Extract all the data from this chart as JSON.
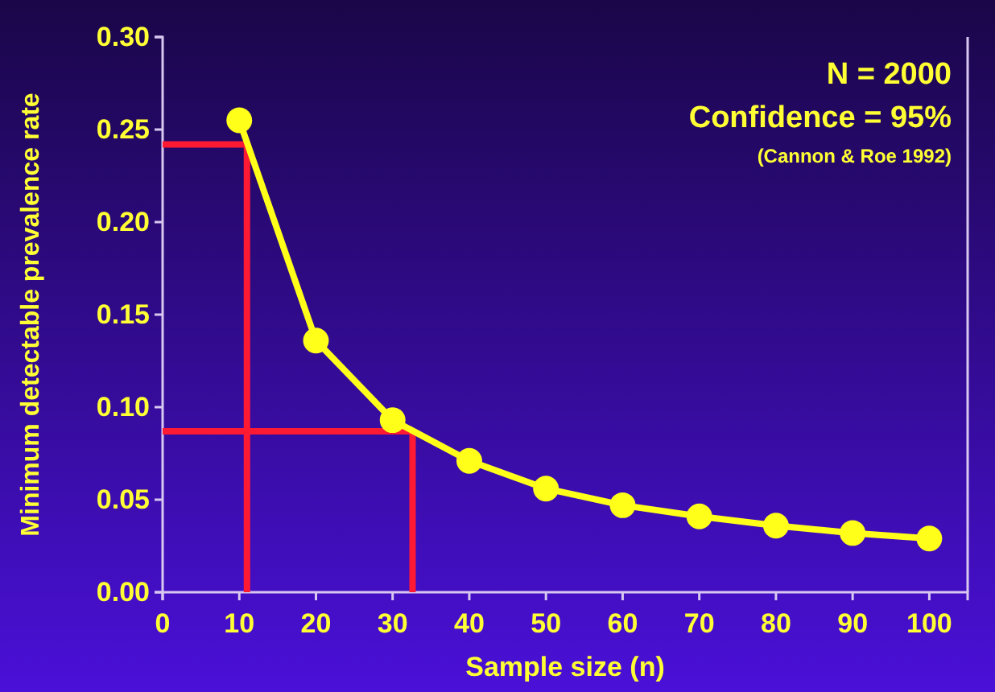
{
  "chart_data": {
    "type": "line",
    "xlabel": "Sample size (n)",
    "ylabel": "Minimum detectable prevalence rate",
    "annotations": [
      "N = 2000",
      "Confidence = 95%",
      "(Cannon & Roe 1992)"
    ],
    "x": [
      10,
      20,
      30,
      40,
      50,
      60,
      70,
      80,
      90,
      100
    ],
    "series": [
      {
        "color": "#ffff1a",
        "marker": "circle",
        "values": [
          0.255,
          0.136,
          0.093,
          0.071,
          0.056,
          0.047,
          0.041,
          0.036,
          0.032,
          0.029
        ]
      },
      {
        "type": "line",
        "color": "#ff1a33",
        "marker": "none",
        "x": [
          0,
          11,
          11
        ],
        "values": [
          0.242,
          0.242,
          0
        ]
      },
      {
        "type": "line",
        "color": "#ff1a33",
        "marker": "none",
        "x": [
          0,
          32.6,
          32.6
        ],
        "values": [
          0.087,
          0.087,
          0
        ]
      }
    ],
    "xlim": [
      0,
      105
    ],
    "xticks": [
      0,
      10,
      20,
      30,
      40,
      50,
      60,
      70,
      80,
      90,
      100
    ],
    "ylim": [
      0,
      0.3
    ],
    "yticks": [
      {
        "value": 0,
        "label": "0.00"
      },
      {
        "value": 0.05,
        "label": "0.05"
      },
      {
        "value": 0.1,
        "label": "0.10"
      },
      {
        "value": 0.15,
        "label": "0.15"
      },
      {
        "value": 0.2,
        "label": "0.20"
      },
      {
        "value": 0.25,
        "label": "0.25"
      },
      {
        "value": 0.3,
        "label": "0.30"
      }
    ],
    "grid": false
  }
}
